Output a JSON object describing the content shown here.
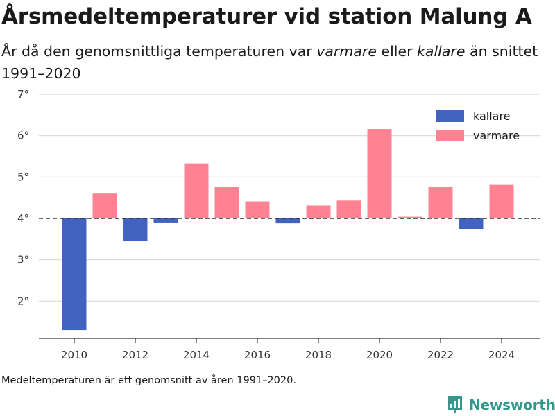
{
  "header": {
    "title": "Årsmedeltemperaturer vid station Malung A",
    "subtitle_part1": "År då den genomsnittliga temperaturen var ",
    "subtitle_warm_word": "varmare",
    "subtitle_part2": " eller ",
    "subtitle_cold_word": "kallare",
    "subtitle_part3": " än snittet 1991–2020"
  },
  "footer": {
    "note": "Medeltemperaturen är ett genomsnitt av åren 1991–2020.",
    "brand": "Newsworthy"
  },
  "chart_data": {
    "type": "bar",
    "title": "Årsmedeltemperaturer vid station Malung A",
    "xlabel": "",
    "ylabel": "",
    "baseline": 4.0,
    "ylim": [
      1.1,
      7.1
    ],
    "yticks": [
      2,
      3,
      4,
      5,
      6,
      7
    ],
    "ytick_labels": [
      "2°",
      "3°",
      "4°",
      "5°",
      "6°",
      "7°"
    ],
    "xticks": [
      2010,
      2012,
      2014,
      2016,
      2018,
      2020,
      2022,
      2024
    ],
    "xtick_labels": [
      "2010",
      "2012",
      "2014",
      "2016",
      "2018",
      "2020",
      "2022",
      "2024"
    ],
    "grid": true,
    "legend_position": "top-right",
    "legend": [
      {
        "key": "cold",
        "label": "kallare",
        "color": "#4262c0"
      },
      {
        "key": "warm",
        "label": "varmare",
        "color": "#ff8293"
      }
    ],
    "categories": [
      2010,
      2011,
      2012,
      2013,
      2014,
      2015,
      2016,
      2017,
      2018,
      2019,
      2020,
      2021,
      2022,
      2023,
      2024
    ],
    "values": [
      1.3,
      4.6,
      3.45,
      3.9,
      5.33,
      4.77,
      4.41,
      3.88,
      4.31,
      4.43,
      6.16,
      4.04,
      4.76,
      3.74,
      4.81
    ]
  }
}
